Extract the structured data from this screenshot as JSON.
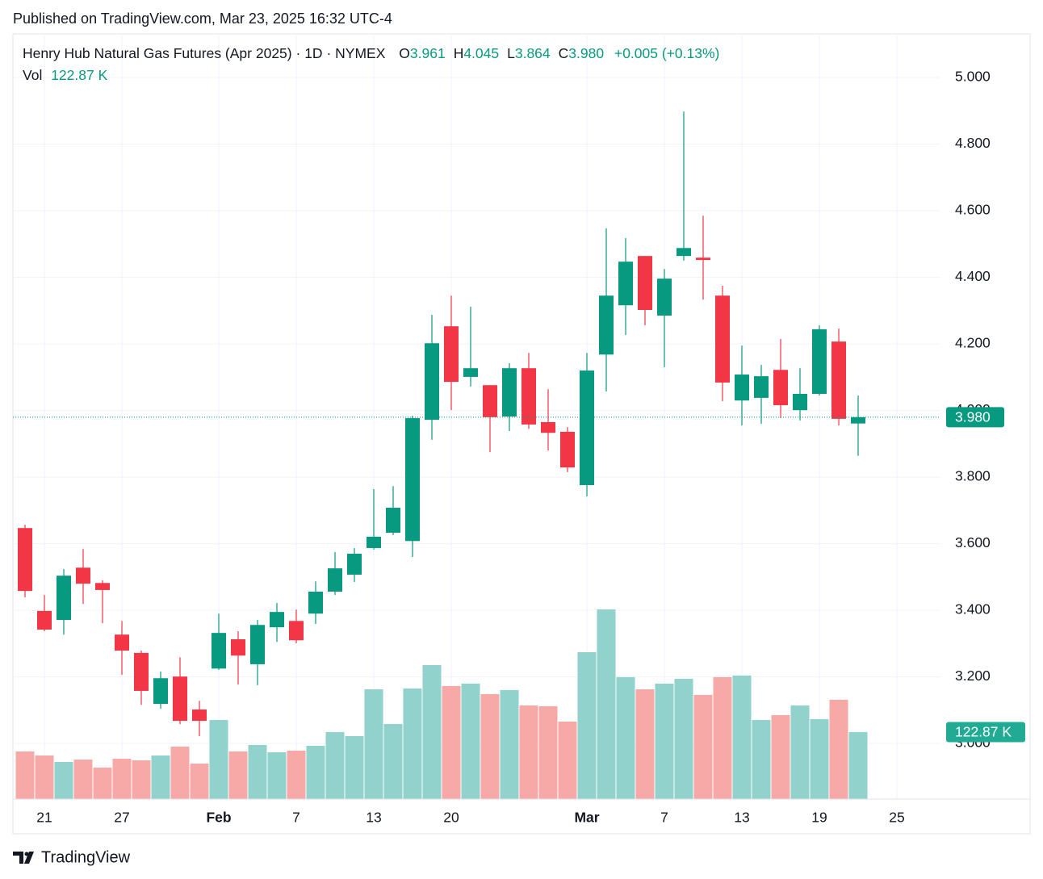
{
  "published": "Published on TradingView.com, Mar 23, 2025 16:32 UTC-4",
  "brand": "TradingView",
  "chart_data": {
    "type": "candlestick",
    "title": "Henry Hub Natural Gas Futures (Apr 2025)",
    "interval": "1D",
    "exchange": "NYMEX",
    "ohlc_header": [
      {
        "label": "O",
        "text": "3.961"
      },
      {
        "label": "H",
        "text": "4.045"
      },
      {
        "label": "L",
        "text": "3.864"
      },
      {
        "label": "C",
        "text": "3.980"
      }
    ],
    "change_text": "+0.005 (+0.13%)",
    "categories": [
      "Jan 17",
      "Jan 21",
      "Jan 22",
      "Jan 23",
      "Jan 24",
      "Jan 27",
      "Jan 28",
      "Jan 29",
      "Jan 30",
      "Jan 31",
      "Feb 3",
      "Feb 4",
      "Feb 5",
      "Feb 6",
      "Feb 7",
      "Feb 10",
      "Feb 11",
      "Feb 12",
      "Feb 13",
      "Feb 14",
      "Feb 18",
      "Feb 19",
      "Feb 20",
      "Feb 21",
      "Feb 24",
      "Feb 25",
      "Feb 26",
      "Feb 27",
      "Feb 28",
      "Mar 3",
      "Mar 4",
      "Mar 5",
      "Mar 6",
      "Mar 7",
      "Mar 10",
      "Mar 11",
      "Mar 12",
      "Mar 13",
      "Mar 14",
      "Mar 17",
      "Mar 18",
      "Mar 19",
      "Mar 20",
      "Mar 21",
      "Mar 24",
      "Mar 25"
    ],
    "open": [
      3.647,
      3.398,
      3.371,
      3.528,
      3.482,
      3.327,
      3.272,
      3.119,
      3.201,
      3.102,
      3.225,
      3.313,
      3.238,
      3.349,
      3.368,
      3.39,
      3.456,
      3.507,
      3.587,
      3.633,
      3.608,
      3.972,
      4.253,
      4.101,
      4.076,
      3.982,
      4.127,
      3.965,
      3.936,
      3.776,
      4.168,
      4.316,
      4.464,
      4.285,
      4.464,
      4.459,
      4.345,
      4.03,
      4.038,
      4.122,
      4.001,
      4.05,
      4.207,
      3.961,
      null,
      null
    ],
    "high": [
      3.657,
      3.446,
      3.524,
      3.584,
      3.49,
      3.368,
      3.279,
      3.216,
      3.259,
      3.128,
      3.39,
      3.337,
      3.371,
      3.422,
      3.402,
      3.487,
      3.575,
      3.587,
      3.764,
      3.773,
      3.984,
      4.287,
      4.345,
      4.312,
      4.076,
      4.142,
      4.173,
      4.064,
      3.95,
      4.173,
      4.547,
      4.518,
      4.464,
      4.425,
      4.898,
      4.585,
      4.375,
      4.195,
      4.137,
      4.215,
      4.127,
      4.256,
      4.246,
      4.045,
      null,
      null
    ],
    "low": [
      3.439,
      3.337,
      3.327,
      3.419,
      3.361,
      3.206,
      3.116,
      3.104,
      3.058,
      3.022,
      3.221,
      3.177,
      3.175,
      3.305,
      3.301,
      3.359,
      3.446,
      3.485,
      3.582,
      3.626,
      3.56,
      3.912,
      4.001,
      4.072,
      3.875,
      3.938,
      3.945,
      3.88,
      3.815,
      3.742,
      4.057,
      4.227,
      4.256,
      4.13,
      4.45,
      4.333,
      4.028,
      3.955,
      3.96,
      3.977,
      3.97,
      4.045,
      3.955,
      3.864,
      null,
      null
    ],
    "close": [
      3.458,
      3.342,
      3.504,
      3.48,
      3.461,
      3.279,
      3.158,
      3.196,
      3.068,
      3.068,
      3.332,
      3.264,
      3.356,
      3.395,
      3.31,
      3.456,
      3.526,
      3.57,
      3.621,
      3.708,
      3.977,
      4.202,
      4.086,
      4.127,
      3.98,
      4.127,
      3.958,
      3.933,
      3.829,
      4.12,
      4.345,
      4.447,
      4.302,
      4.396,
      4.488,
      4.452,
      4.084,
      4.108,
      4.103,
      4.016,
      4.05,
      4.244,
      3.975,
      3.98,
      null,
      null
    ],
    "volume": {
      "name": "Vol",
      "axis": "y2",
      "values": [
        87.3,
        79.9,
        68.1,
        72.5,
        57.7,
        74.0,
        71.1,
        79.9,
        96.2,
        65.1,
        145.1,
        87.3,
        99.2,
        85.9,
        88.8,
        97.7,
        122.9,
        115.5,
        201.3,
        137.7,
        202.8,
        245.7,
        207.3,
        211.7,
        192.5,
        199.9,
        171.7,
        170.2,
        142.1,
        269.4,
        347.9,
        223.5,
        201.3,
        211.7,
        220.6,
        191.0,
        223.5,
        226.5,
        145.1,
        154.0,
        171.7,
        146.6,
        182.1,
        122.87,
        null,
        null
      ]
    },
    "up_color": "#089981",
    "down_color": "#f23645",
    "up_volume_color": "#92d2cc",
    "down_volume_color": "#f7a9a7",
    "ylim": [
      2.833,
      5.131
    ],
    "yticks": [
      {
        "value": 3,
        "label": "3.000"
      },
      {
        "value": 3.2,
        "label": "3.200"
      },
      {
        "value": 3.4,
        "label": "3.400"
      },
      {
        "value": 3.6,
        "label": "3.600"
      },
      {
        "value": 3.8,
        "label": "3.800"
      },
      {
        "value": 4,
        "label": "4.000"
      },
      {
        "value": 4.2,
        "label": "4.200"
      },
      {
        "value": 4.4,
        "label": "4.400"
      },
      {
        "value": 4.6,
        "label": "4.600"
      },
      {
        "value": 4.8,
        "label": "4.800"
      },
      {
        "value": 5,
        "label": "5.000"
      }
    ],
    "y2lim": [
      0,
      1403
    ],
    "xticks": [
      {
        "value": "Jan 21",
        "label": "21"
      },
      {
        "value": "Jan 27",
        "label": "27"
      },
      {
        "value": "Feb 3",
        "label": "Feb"
      },
      {
        "value": "Feb 7",
        "label": "7"
      },
      {
        "value": "Feb 13",
        "label": "13"
      },
      {
        "value": "Feb 20",
        "label": "20"
      },
      {
        "value": "Mar 3",
        "label": "Mar"
      },
      {
        "value": "Mar 7",
        "label": "7"
      },
      {
        "value": "Mar 13",
        "label": "13"
      },
      {
        "value": "Mar 19",
        "label": "19"
      },
      {
        "value": "Mar 25",
        "label": "25"
      }
    ],
    "grid": true,
    "last_price": {
      "value": 3.98,
      "label": "3.980"
    },
    "last_volume": {
      "value": 122.87,
      "label": "122.87 K"
    }
  }
}
